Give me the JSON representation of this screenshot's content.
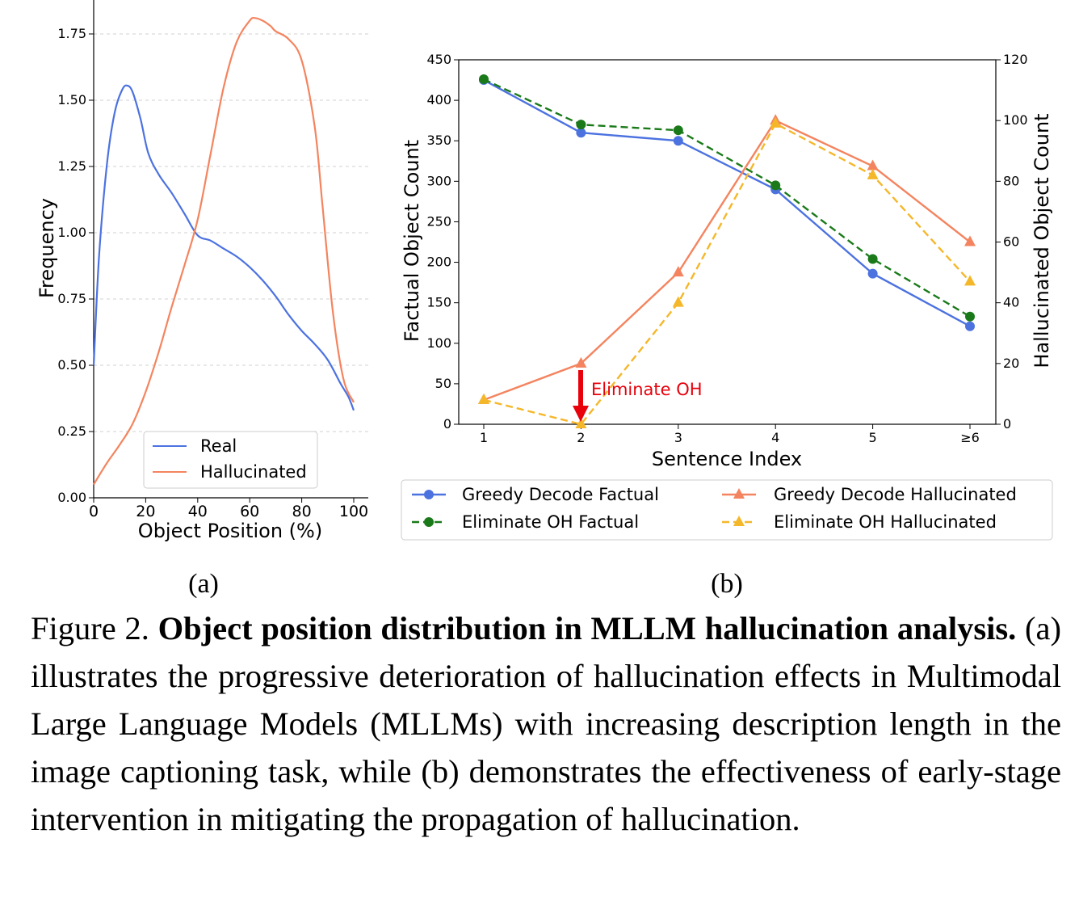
{
  "figure": {
    "caption_prefix": "Figure 2.",
    "caption_bold": "Object position distribution in MLLM hallucination analysis.",
    "caption_rest": "(a) illustrates the progressive deterioration of hallucination effects in Multimodal Large Language Models (MLLMs) with increasing description length in the image captioning task, while (b) demonstrates the effectiveness of early-stage intervention in mitigating the propagation of hallucination."
  },
  "chart_data": [
    {
      "panel": "(a)",
      "type": "line",
      "xlabel": "Object Position (%)",
      "ylabel": "Frequency",
      "xlim": [
        0,
        100
      ],
      "ylim": [
        0,
        1.85
      ],
      "xticks": [
        "0",
        "20",
        "40",
        "60",
        "80",
        "100"
      ],
      "yticks": [
        "0.00",
        "0.25",
        "0.50",
        "0.75",
        "1.00",
        "1.25",
        "1.50",
        "1.75"
      ],
      "grid": "horizontal dashed",
      "legend_position": "lower-center",
      "series": [
        {
          "name": "Real",
          "color": "#4c72e0",
          "x": [
            0,
            2,
            5,
            8,
            11,
            13,
            15,
            18,
            21,
            25,
            30,
            35,
            40,
            45,
            50,
            55,
            60,
            65,
            70,
            75,
            80,
            85,
            90,
            95,
            98,
            100
          ],
          "y": [
            0.5,
            0.9,
            1.25,
            1.45,
            1.54,
            1.555,
            1.53,
            1.43,
            1.3,
            1.22,
            1.15,
            1.07,
            0.99,
            0.97,
            0.94,
            0.91,
            0.87,
            0.82,
            0.76,
            0.69,
            0.63,
            0.58,
            0.52,
            0.43,
            0.38,
            0.33
          ]
        },
        {
          "name": "Hallucinated",
          "color": "#f4845f",
          "x": [
            0,
            5,
            10,
            15,
            20,
            25,
            30,
            35,
            40,
            45,
            50,
            55,
            60,
            62,
            65,
            68,
            70,
            75,
            80,
            85,
            88,
            92,
            96,
            100
          ],
          "y": [
            0.05,
            0.13,
            0.2,
            0.28,
            0.4,
            0.55,
            0.72,
            0.88,
            1.05,
            1.3,
            1.55,
            1.72,
            1.8,
            1.81,
            1.8,
            1.78,
            1.76,
            1.73,
            1.65,
            1.4,
            1.1,
            0.7,
            0.45,
            0.36
          ]
        }
      ]
    },
    {
      "panel": "(b)",
      "type": "line",
      "xlabel": "Sentence Index",
      "ylabel_left": "Factual Object Count",
      "ylabel_right": "Hallucinated Object Count",
      "categories": [
        "1",
        "2",
        "3",
        "4",
        "5",
        "≥6"
      ],
      "ylim_left": [
        0,
        450
      ],
      "ylim_right": [
        0,
        120
      ],
      "yticks_left": [
        "0",
        "50",
        "100",
        "150",
        "200",
        "250",
        "300",
        "350",
        "400",
        "450"
      ],
      "yticks_right": [
        "0",
        "20",
        "40",
        "60",
        "80",
        "100",
        "120"
      ],
      "legend_position": "below-plot",
      "annotation": {
        "text": "Eliminate OH",
        "at_category": "2",
        "color": "#e8000b"
      },
      "series": [
        {
          "name": "Greedy Decode Factual",
          "axis": "left",
          "color": "#4c72e0",
          "style": "solid",
          "marker": "circle",
          "values": [
            425,
            360,
            350,
            290,
            186,
            121
          ]
        },
        {
          "name": "Eliminate OH Factual",
          "axis": "left",
          "color": "#1a7a1a",
          "style": "dashed",
          "marker": "circle",
          "values": [
            426,
            370,
            363,
            295,
            204,
            133
          ]
        },
        {
          "name": "Greedy Decode Hallucinated",
          "axis": "right",
          "color": "#f4845f",
          "style": "solid",
          "marker": "triangle",
          "values": [
            8,
            20,
            50,
            100,
            85,
            60
          ]
        },
        {
          "name": "Eliminate OH Hallucinated",
          "axis": "right",
          "color": "#f5b72a",
          "style": "dashed",
          "marker": "triangle",
          "values": [
            8,
            0,
            40,
            99,
            82,
            47
          ]
        }
      ]
    }
  ]
}
